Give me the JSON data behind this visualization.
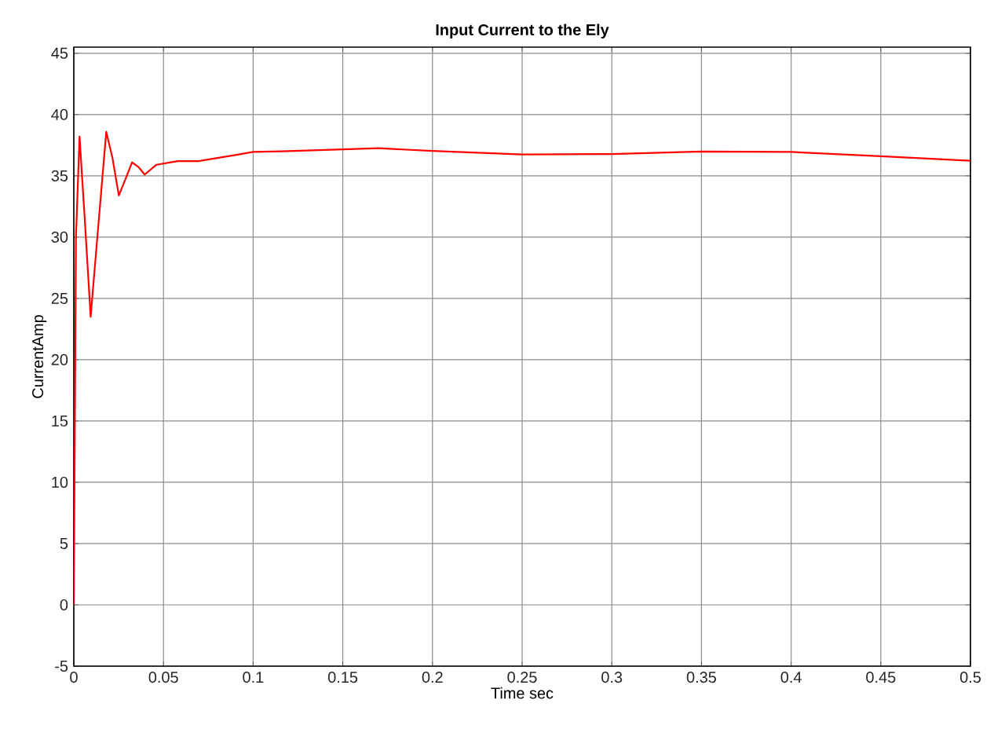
{
  "chart_data": {
    "type": "line",
    "title": "Input Current to the Ely",
    "xlabel": "Time sec",
    "ylabel": "CurrentAmp",
    "x": [
      0,
      0.0012,
      0.0032,
      0.0063,
      0.0094,
      0.0137,
      0.0181,
      0.0215,
      0.0251,
      0.029,
      0.0325,
      0.0362,
      0.0395,
      0.046,
      0.058,
      0.0696,
      0.09,
      0.1,
      0.116,
      0.15,
      0.17,
      0.2,
      0.25,
      0.3,
      0.35,
      0.4,
      0.45,
      0.5
    ],
    "series": [
      {
        "color": "#ff0000",
        "values": [
          0,
          30,
          38.2,
          31,
          23.5,
          31,
          38.6,
          36.5,
          33.4,
          34.8,
          36.1,
          35.7,
          35.1,
          35.9,
          36.2,
          36.2,
          36.7,
          36.95,
          37.0,
          37.16,
          37.25,
          37.03,
          36.74,
          36.78,
          36.99,
          36.95,
          36.6,
          36.23
        ]
      }
    ],
    "xlim": [
      0,
      0.5
    ],
    "ylim": [
      -5,
      45.5
    ],
    "xticks": [
      0,
      0.05,
      0.1,
      0.15,
      0.2,
      0.25,
      0.3,
      0.35,
      0.4,
      0.45,
      0.5
    ],
    "yticks": [
      -5,
      0,
      5,
      10,
      15,
      20,
      25,
      30,
      35,
      40,
      45
    ],
    "grid": true,
    "marker": "none",
    "line_style": "solid"
  }
}
